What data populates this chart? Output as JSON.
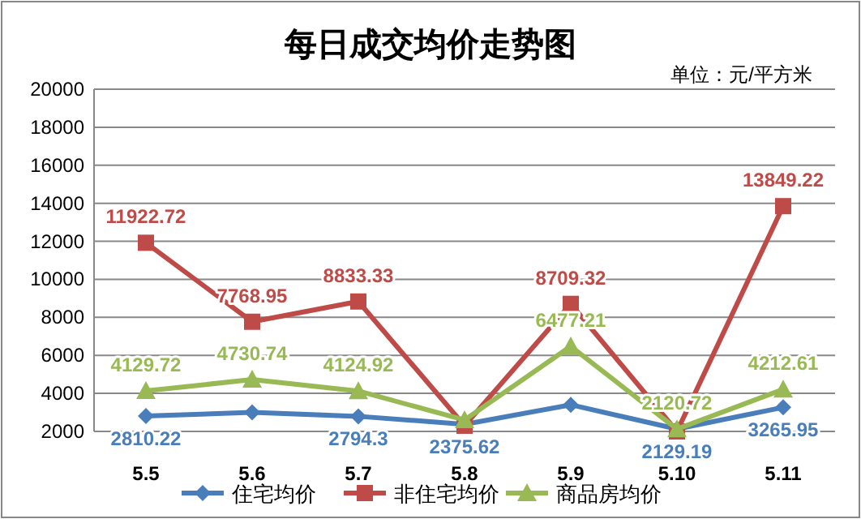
{
  "chart_data": {
    "type": "line",
    "title": "每日成交均价走势图",
    "annotations": [
      "单位：元/平方米"
    ],
    "categories": [
      "5.5",
      "5.6",
      "5.7",
      "5.8",
      "5.9",
      "5.10",
      "5.11"
    ],
    "ylim": [
      2000,
      20000
    ],
    "yticks": [
      2000,
      4000,
      6000,
      8000,
      10000,
      12000,
      14000,
      16000,
      18000,
      20000
    ],
    "grid": "y",
    "legend": "bottom",
    "series": [
      {
        "name": "住宅均价",
        "color": "#4a7ebb",
        "marker": "diamond",
        "values": [
          2810.22,
          3000,
          2794.3,
          2375.62,
          3400,
          2129.19,
          3265.95
        ],
        "value_labels": [
          "2810.22",
          null,
          "2794.3",
          "2375.62",
          null,
          "2129.19",
          "3265.95"
        ]
      },
      {
        "name": "非住宅均价",
        "color": "#be4b48",
        "marker": "square",
        "values": [
          11922.72,
          7768.95,
          8833.33,
          2300,
          8709.32,
          2000,
          13849.22
        ],
        "value_labels": [
          "11922.72",
          "7768.95",
          "8833.33",
          null,
          "8709.32",
          null,
          "13849.22"
        ]
      },
      {
        "name": "商品房均价",
        "color": "#98b954",
        "marker": "triangle",
        "values": [
          4129.72,
          4730.74,
          4124.92,
          2600,
          6477.21,
          2120.72,
          4212.61
        ],
        "value_labels": [
          "4129.72",
          "4730.74",
          "4124.92",
          null,
          "6477.21",
          "2120.72",
          "4212.61"
        ]
      }
    ]
  }
}
